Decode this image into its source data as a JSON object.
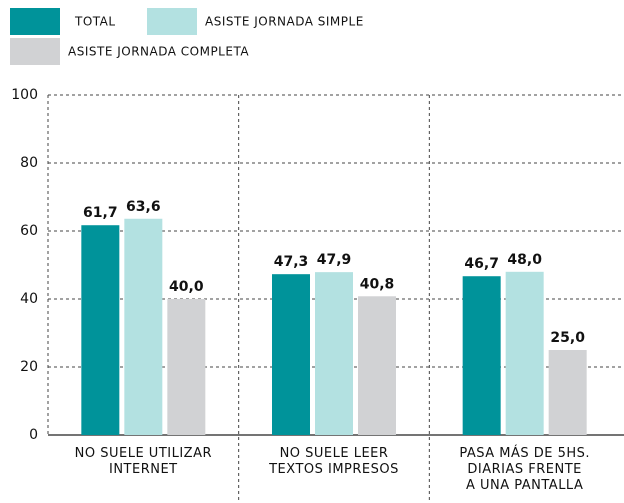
{
  "chart_data": {
    "type": "bar",
    "categories": [
      "NO SUELE UTILIZAR\nINTERNET",
      "NO SUELE LEER\nTEXTOS IMPRESOS",
      "PASA MÁS DE 5HS.\nDIARIAS FRENTE\nA UNA PANTALLA"
    ],
    "series": [
      {
        "name": "TOTAL",
        "color": "#00939a",
        "values": [
          61.7,
          47.3,
          46.7
        ],
        "value_labels": [
          "61,7",
          "47,3",
          "46,7"
        ]
      },
      {
        "name": "ASISTE JORNADA SIMPLE",
        "color": "#b3e1e1",
        "values": [
          63.6,
          47.9,
          48.0
        ],
        "value_labels": [
          "63,6",
          "47,9",
          "48,0"
        ]
      },
      {
        "name": "ASISTE JORNADA COMPLETA",
        "color": "#d1d2d4",
        "values": [
          40.0,
          40.8,
          25.0
        ],
        "value_labels": [
          "40,0",
          "40,8",
          "25,0"
        ]
      }
    ],
    "ylim": [
      0,
      100
    ],
    "yticks": [
      0,
      20,
      40,
      60,
      80,
      100
    ],
    "grid": true
  }
}
